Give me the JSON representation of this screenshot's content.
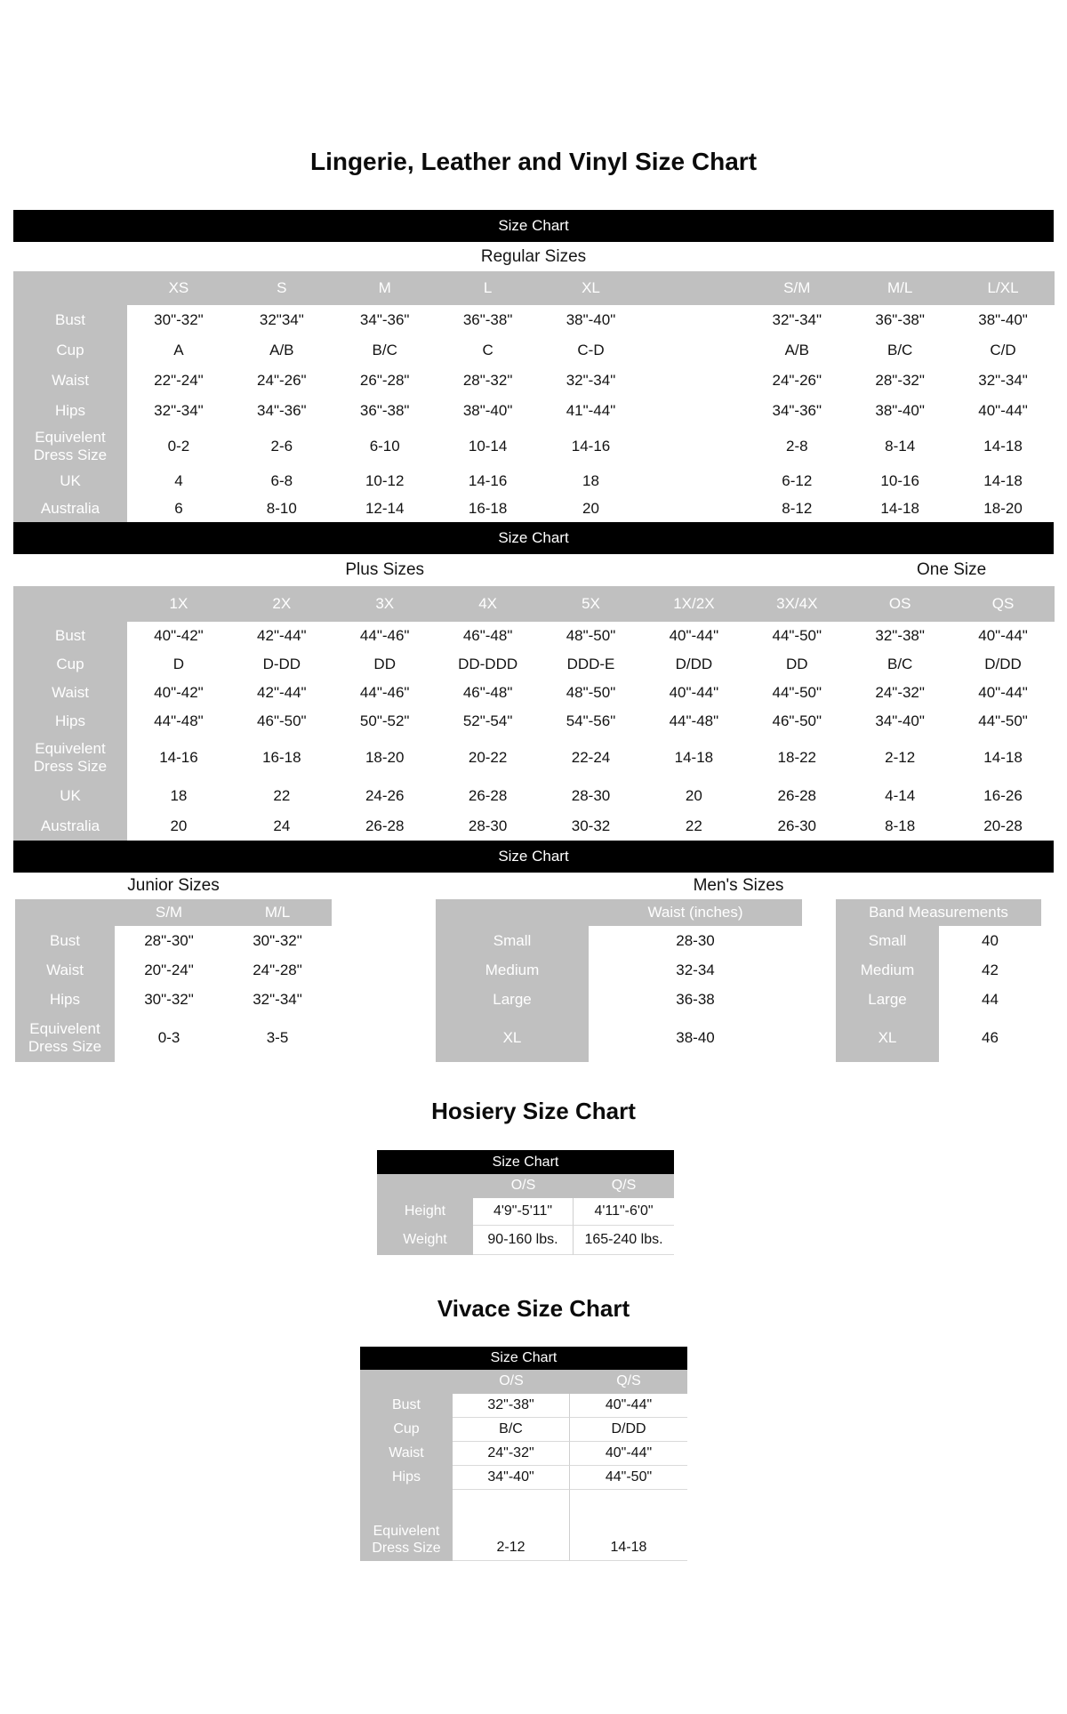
{
  "page_title": "Lingerie, Leather and Vinyl Size Chart",
  "colors": {
    "banner_bg": "#000000",
    "banner_text": "#ffffff",
    "header_bg": "#c0c0c0",
    "header_text": "#ffffff",
    "value_text": "#131313"
  },
  "regular": {
    "banner": "Size Chart",
    "subtitle": "Regular Sizes",
    "columns": [
      "XS",
      "S",
      "M",
      "L",
      "XL",
      "",
      "S/M",
      "M/L",
      "L/XL"
    ],
    "rows": [
      {
        "label": "Bust",
        "values": [
          "30\"-32\"",
          "32\"34\"",
          "34\"-36\"",
          "36\"-38\"",
          "38\"-40\"",
          "",
          "32\"-34\"",
          "36\"-38\"",
          "38\"-40\""
        ]
      },
      {
        "label": "Cup",
        "values": [
          "A",
          "A/B",
          "B/C",
          "C",
          "C-D",
          "",
          "A/B",
          "B/C",
          "C/D"
        ]
      },
      {
        "label": "Waist",
        "values": [
          "22\"-24\"",
          "24\"-26\"",
          "26\"-28\"",
          "28\"-32\"",
          "32\"-34\"",
          "",
          "24\"-26\"",
          "28\"-32\"",
          "32\"-34\""
        ]
      },
      {
        "label": "Hips",
        "values": [
          "32\"-34\"",
          "34\"-36\"",
          "36\"-38\"",
          "38\"-40\"",
          "41\"-44\"",
          "",
          "34\"-36\"",
          "38\"-40\"",
          "40\"-44\""
        ]
      },
      {
        "label": "Equivelent\nDress Size",
        "values": [
          "0-2",
          "2-6",
          "6-10",
          "10-14",
          "14-16",
          "",
          "2-8",
          "8-14",
          "14-18"
        ]
      },
      {
        "label": "UK",
        "values": [
          "4",
          "6-8",
          "10-12",
          "14-16",
          "18",
          "",
          "6-12",
          "10-16",
          "14-18"
        ]
      },
      {
        "label": "Australia",
        "values": [
          "6",
          "8-10",
          "12-14",
          "16-18",
          "20",
          "",
          "8-12",
          "14-18",
          "18-20"
        ]
      }
    ]
  },
  "plus": {
    "banner": "Size Chart",
    "subtitle_left": "Plus Sizes",
    "subtitle_right": "One Size",
    "columns": [
      "1X",
      "2X",
      "3X",
      "4X",
      "5X",
      "1X/2X",
      "3X/4X",
      "OS",
      "QS"
    ],
    "rows": [
      {
        "label": "Bust",
        "values": [
          "40\"-42\"",
          "42\"-44\"",
          "44\"-46\"",
          "46\"-48\"",
          "48\"-50\"",
          "40\"-44\"",
          "44\"-50\"",
          "32\"-38\"",
          "40\"-44\""
        ]
      },
      {
        "label": "Cup",
        "values": [
          "D",
          "D-DD",
          "DD",
          "DD-DDD",
          "DDD-E",
          "D/DD",
          "DD",
          "B/C",
          "D/DD"
        ]
      },
      {
        "label": "Waist",
        "values": [
          "40\"-42\"",
          "42\"-44\"",
          "44\"-46\"",
          "46\"-48\"",
          "48\"-50\"",
          "40\"-44\"",
          "44\"-50\"",
          "24\"-32\"",
          "40\"-44\""
        ]
      },
      {
        "label": "Hips",
        "values": [
          "44\"-48\"",
          "46\"-50\"",
          "50\"-52\"",
          "52\"-54\"",
          "54\"-56\"",
          "44\"-48\"",
          "46\"-50\"",
          "34\"-40\"",
          "44\"-50\""
        ]
      },
      {
        "label": "Equivelent\nDress Size",
        "values": [
          "14-16",
          "16-18",
          "18-20",
          "20-22",
          "22-24",
          "14-18",
          "18-22",
          "2-12",
          "14-18"
        ]
      },
      {
        "label": "UK",
        "values": [
          "18",
          "22",
          "24-26",
          "26-28",
          "28-30",
          "20",
          "26-28",
          "4-14",
          "16-26"
        ]
      },
      {
        "label": "Australia",
        "values": [
          "20",
          "24",
          "26-28",
          "28-30",
          "30-32",
          "22",
          "26-30",
          "8-18",
          "20-28"
        ]
      }
    ]
  },
  "junior_mens": {
    "banner": "Size Chart",
    "junior": {
      "subtitle": "Junior Sizes",
      "columns": [
        "S/M",
        "M/L"
      ],
      "rows": [
        {
          "label": "Bust",
          "values": [
            "28\"-30\"",
            "30\"-32\""
          ]
        },
        {
          "label": "Waist",
          "values": [
            "20\"-24\"",
            "24\"-28\""
          ]
        },
        {
          "label": "Hips",
          "values": [
            "30\"-32\"",
            "32\"-34\""
          ]
        },
        {
          "label": "Equivelent\nDress Size",
          "values": [
            "0-3",
            "3-5"
          ]
        }
      ]
    },
    "mens": {
      "subtitle": "Men's Sizes",
      "waist_header": "Waist (inches)",
      "band_header": "Band Measurements",
      "rows": [
        {
          "label": "Small",
          "waist": "28-30",
          "band_label": "Small",
          "band": "40"
        },
        {
          "label": "Medium",
          "waist": "32-34",
          "band_label": "Medium",
          "band": "42"
        },
        {
          "label": "Large",
          "waist": "36-38",
          "band_label": "Large",
          "band": "44"
        },
        {
          "label": "XL",
          "waist": "38-40",
          "band_label": "XL",
          "band": "46"
        }
      ]
    }
  },
  "hosiery": {
    "heading": "Hosiery Size Chart",
    "banner": "Size Chart",
    "columns": [
      "O/S",
      "Q/S"
    ],
    "rows": [
      {
        "label": "Height",
        "values": [
          "4'9\"-5'11\"",
          "4'11\"-6'0\""
        ]
      },
      {
        "label": "Weight",
        "values": [
          "90-160 lbs.",
          "165-240 lbs."
        ]
      }
    ]
  },
  "vivace": {
    "heading": "Vivace Size Chart",
    "banner": "Size Chart",
    "columns": [
      "O/S",
      "Q/S"
    ],
    "rows": [
      {
        "label": "Bust",
        "values": [
          "32\"-38\"",
          "40\"-44\""
        ]
      },
      {
        "label": "Cup",
        "values": [
          "B/C",
          "D/DD"
        ]
      },
      {
        "label": "Waist",
        "values": [
          "24\"-32\"",
          "40\"-44\""
        ]
      },
      {
        "label": "Hips",
        "values": [
          "34\"-40\"",
          "44\"-50\""
        ]
      },
      {
        "label": "Equivelent\nDress Size",
        "values": [
          "2-12",
          "14-18"
        ]
      }
    ]
  }
}
